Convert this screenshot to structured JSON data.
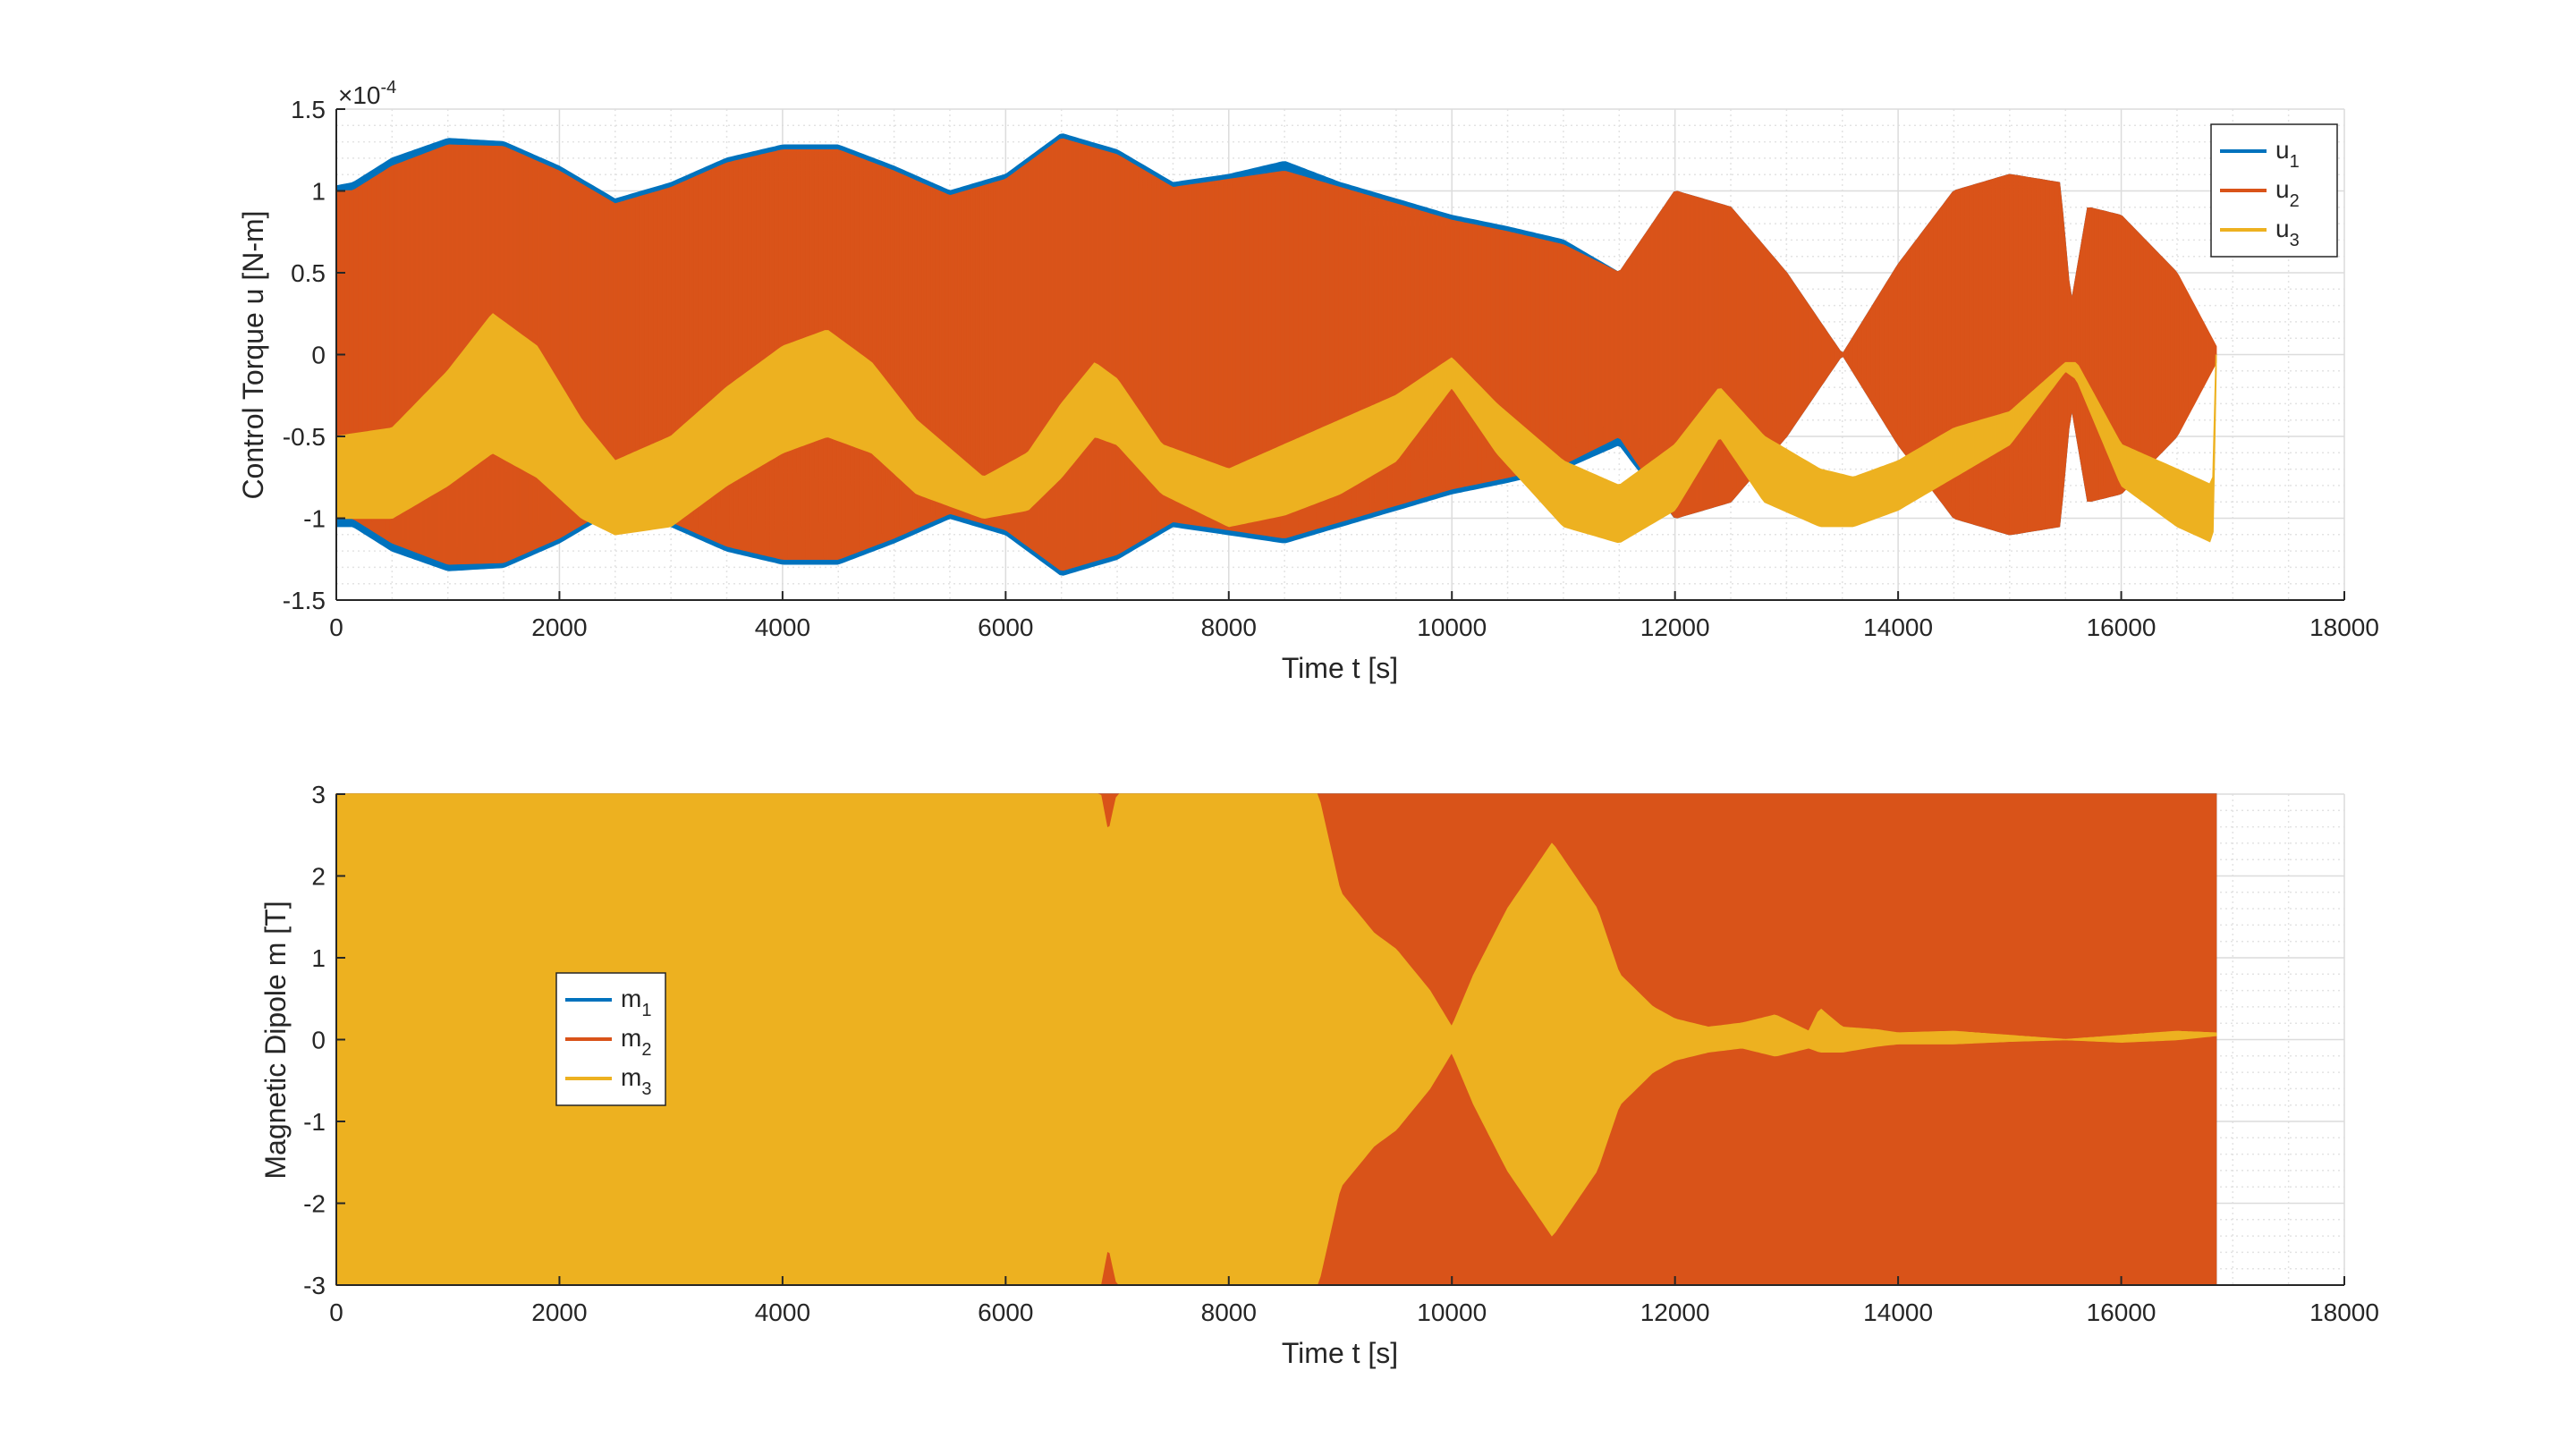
{
  "figure": {
    "axes_color": "#262626",
    "grid_color": "#e3e3e3"
  },
  "chart_data": [
    {
      "type": "line",
      "xlabel": "Time t [s]",
      "ylabel": "Control Torque u [N-m]",
      "exponent_label": {
        "base": "×10",
        "power": "-4"
      },
      "xlim": [
        0,
        18000
      ],
      "ylim": [
        -1.5,
        1.5
      ],
      "x_ticks": [
        0,
        2000,
        4000,
        6000,
        8000,
        10000,
        12000,
        14000,
        16000,
        18000
      ],
      "y_ticks": [
        -1.5,
        -1,
        -0.5,
        0,
        0.5,
        1,
        1.5
      ],
      "x_tick_labels": [
        "0",
        "2000",
        "4000",
        "6000",
        "8000",
        "10000",
        "12000",
        "14000",
        "16000",
        "18000"
      ],
      "y_tick_labels": [
        "-1.5",
        "-1",
        "-0.5",
        "0",
        "0.5",
        "1",
        "1.5"
      ],
      "grid": true,
      "minor_grid": true,
      "legend_position": "top-right",
      "series": [
        {
          "name": "u",
          "sub": "1",
          "color": "#0072BD",
          "style": "oscillating-band",
          "envelope_x": [
            0,
            150,
            500,
            1000,
            1500,
            2000,
            2500,
            3000,
            3500,
            4000,
            4500,
            5000,
            5500,
            6000,
            6500,
            7000,
            7500,
            8000,
            8500,
            9000,
            9500,
            10000,
            10500,
            11000,
            11500,
            12000,
            12500,
            13000,
            13500,
            14000,
            14500,
            15000,
            15450,
            15550,
            15700,
            16000,
            16500,
            16850
          ],
          "upper": [
            1.03,
            1.05,
            1.2,
            1.32,
            1.3,
            1.15,
            0.95,
            1.05,
            1.2,
            1.28,
            1.28,
            1.15,
            1.0,
            1.1,
            1.35,
            1.25,
            1.05,
            1.1,
            1.18,
            1.05,
            0.95,
            0.85,
            0.78,
            0.7,
            0.5,
            1.0,
            0.9,
            0.5,
            0.0,
            0.55,
            1.0,
            1.1,
            1.05,
            0.3,
            0.9,
            0.85,
            0.5,
            0.0
          ],
          "lower": [
            -1.05,
            -1.05,
            -1.2,
            -1.32,
            -1.3,
            -1.15,
            -0.95,
            -1.05,
            -1.2,
            -1.28,
            -1.28,
            -1.15,
            -1.0,
            -1.1,
            -1.35,
            -1.25,
            -1.05,
            -1.1,
            -1.15,
            -1.05,
            -0.95,
            -0.85,
            -0.78,
            -0.7,
            -0.55,
            -1.0,
            -0.9,
            -0.5,
            0.0,
            -0.55,
            -1.0,
            -1.1,
            -1.05,
            -0.3,
            -0.9,
            -0.85,
            -0.5,
            0.0
          ]
        },
        {
          "name": "u",
          "sub": "2",
          "color": "#D95319",
          "style": "oscillating-band",
          "envelope_x": [
            0,
            150,
            500,
            1000,
            1500,
            2000,
            2500,
            3000,
            3500,
            4000,
            4500,
            5000,
            5500,
            6000,
            6500,
            7000,
            7500,
            8000,
            8500,
            9000,
            9500,
            10000,
            10500,
            11000,
            11500,
            12000,
            12500,
            13000,
            13500,
            14000,
            14500,
            15000,
            15450,
            15550,
            15700,
            16000,
            16500,
            16850
          ],
          "upper": [
            1.0,
            1.0,
            1.15,
            1.28,
            1.27,
            1.12,
            0.92,
            1.02,
            1.17,
            1.25,
            1.25,
            1.12,
            0.97,
            1.07,
            1.32,
            1.22,
            1.02,
            1.07,
            1.12,
            1.02,
            0.92,
            0.82,
            0.75,
            0.67,
            0.5,
            1.0,
            0.9,
            0.5,
            0.0,
            0.55,
            1.0,
            1.1,
            1.05,
            0.3,
            0.9,
            0.85,
            0.5,
            0.05
          ],
          "lower": [
            -1.0,
            -1.0,
            -1.15,
            -1.28,
            -1.27,
            -1.12,
            -0.92,
            -1.02,
            -1.17,
            -1.25,
            -1.25,
            -1.12,
            -0.97,
            -1.07,
            -1.32,
            -1.22,
            -1.02,
            -1.07,
            -1.12,
            -1.02,
            -0.92,
            -0.82,
            -0.75,
            -0.67,
            -0.5,
            -1.0,
            -0.9,
            -0.5,
            0.0,
            -0.55,
            -1.0,
            -1.1,
            -1.05,
            -0.3,
            -0.9,
            -0.85,
            -0.5,
            -0.05
          ]
        },
        {
          "name": "u",
          "sub": "3",
          "color": "#EDB120",
          "style": "band",
          "envelope_x": [
            0,
            500,
            1000,
            1400,
            1800,
            2200,
            2500,
            3000,
            3500,
            4000,
            4400,
            4800,
            5200,
            5800,
            6200,
            6500,
            6800,
            7000,
            7400,
            8000,
            8500,
            9000,
            9500,
            10000,
            10400,
            11000,
            11500,
            12000,
            12400,
            12800,
            13300,
            13600,
            14000,
            14500,
            15000,
            15500,
            15600,
            16000,
            16500,
            16820,
            16850
          ],
          "upper": [
            -0.5,
            -0.45,
            -0.1,
            0.25,
            0.05,
            -0.4,
            -0.65,
            -0.5,
            -0.2,
            0.05,
            0.15,
            -0.05,
            -0.4,
            -0.75,
            -0.6,
            -0.3,
            -0.05,
            -0.15,
            -0.55,
            -0.7,
            -0.55,
            -0.4,
            -0.25,
            -0.02,
            -0.3,
            -0.65,
            -0.8,
            -0.55,
            -0.2,
            -0.5,
            -0.7,
            -0.75,
            -0.65,
            -0.45,
            -0.35,
            -0.05,
            -0.05,
            -0.55,
            -0.7,
            -0.8,
            0.0
          ],
          "lower": [
            -1.0,
            -1.0,
            -0.8,
            -0.6,
            -0.75,
            -1.0,
            -1.1,
            -1.05,
            -0.8,
            -0.6,
            -0.5,
            -0.6,
            -0.85,
            -1.0,
            -0.95,
            -0.75,
            -0.5,
            -0.55,
            -0.85,
            -1.05,
            -0.98,
            -0.85,
            -0.65,
            -0.2,
            -0.6,
            -1.05,
            -1.15,
            -0.95,
            -0.5,
            -0.9,
            -1.05,
            -1.05,
            -0.95,
            -0.75,
            -0.55,
            -0.1,
            -0.15,
            -0.8,
            -1.05,
            -1.15,
            -0.1
          ]
        }
      ]
    },
    {
      "type": "line",
      "xlabel": "Time t [s]",
      "ylabel": "Magnetic Dipole m [T]",
      "xlim": [
        0,
        18000
      ],
      "ylim": [
        -3,
        3
      ],
      "x_ticks": [
        0,
        2000,
        4000,
        6000,
        8000,
        10000,
        12000,
        14000,
        16000,
        18000
      ],
      "y_ticks": [
        -3,
        -2,
        -1,
        0,
        1,
        2,
        3
      ],
      "x_tick_labels": [
        "0",
        "2000",
        "4000",
        "6000",
        "8000",
        "10000",
        "12000",
        "14000",
        "16000",
        "18000"
      ],
      "y_tick_labels": [
        "-3",
        "-2",
        "-1",
        "0",
        "1",
        "2",
        "3"
      ],
      "grid": true,
      "minor_grid": true,
      "legend_position": "middle-left",
      "series": [
        {
          "name": "m",
          "sub": "1",
          "color": "#0072BD",
          "style": "band",
          "envelope_x": [
            0,
            16850
          ],
          "upper": [
            3,
            3
          ],
          "lower": [
            -3,
            -3
          ]
        },
        {
          "name": "m",
          "sub": "2",
          "color": "#D95319",
          "style": "band",
          "envelope_x": [
            0,
            16850
          ],
          "upper": [
            3,
            3
          ],
          "lower": [
            -3,
            -3
          ]
        },
        {
          "name": "m",
          "sub": "3",
          "color": "#EDB120",
          "style": "band",
          "envelope_x": [
            0,
            6850,
            6920,
            7000,
            8800,
            9000,
            9300,
            9500,
            9800,
            10000,
            10200,
            10500,
            10900,
            11300,
            11500,
            11800,
            12000,
            12300,
            12600,
            12900,
            13200,
            13300,
            13500,
            13800,
            14000,
            14500,
            15000,
            15500,
            16000,
            16500,
            16850
          ],
          "upper": [
            3,
            3,
            2.5,
            3,
            3,
            1.8,
            1.3,
            1.1,
            0.6,
            0.15,
            0.8,
            1.6,
            2.4,
            1.6,
            0.8,
            0.4,
            0.25,
            0.15,
            0.2,
            0.3,
            0.1,
            0.38,
            0.15,
            0.12,
            0.08,
            0.1,
            0.05,
            0.0,
            0.05,
            0.1,
            0.08
          ],
          "lower": [
            -3,
            -3,
            -2.5,
            -3,
            -3,
            -1.8,
            -1.3,
            -1.1,
            -0.6,
            -0.15,
            -0.8,
            -1.6,
            -2.4,
            -1.6,
            -0.8,
            -0.4,
            -0.25,
            -0.15,
            -0.1,
            -0.2,
            -0.1,
            -0.15,
            -0.15,
            -0.08,
            -0.05,
            -0.05,
            -0.02,
            0.0,
            -0.03,
            0.0,
            0.05
          ]
        }
      ]
    }
  ]
}
